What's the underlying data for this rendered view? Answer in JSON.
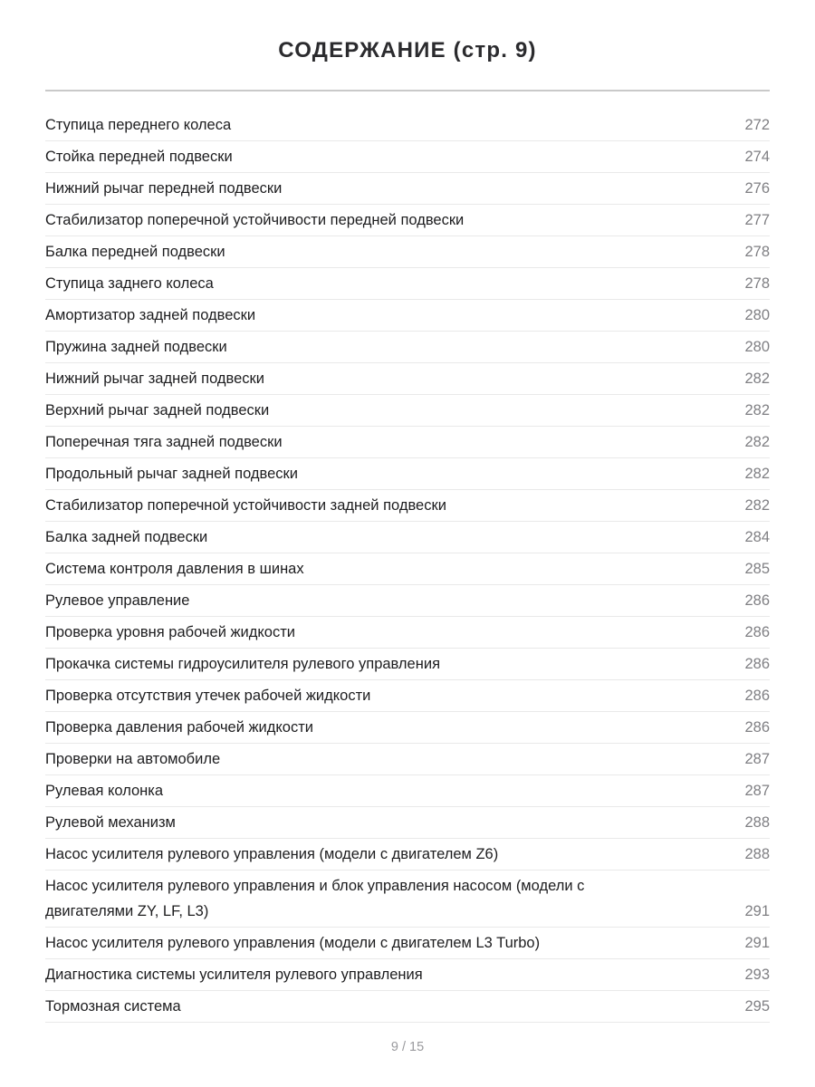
{
  "header": {
    "title": "СОДЕРЖАНИЕ (стр. 9)"
  },
  "toc": {
    "items": [
      {
        "label": "Ступица переднего колеса",
        "page": "272"
      },
      {
        "label": "Стойка передней подвески",
        "page": "274"
      },
      {
        "label": "Нижний рычаг передней подвески",
        "page": "276"
      },
      {
        "label": "Стабилизатор поперечной устойчивости передней подвески",
        "page": "277"
      },
      {
        "label": "Балка передней подвески",
        "page": "278"
      },
      {
        "label": "Ступица заднего колеса",
        "page": "278"
      },
      {
        "label": "Амортизатор задней подвески",
        "page": "280"
      },
      {
        "label": "Пружина задней подвески",
        "page": "280"
      },
      {
        "label": "Нижний рычаг задней подвески",
        "page": "282"
      },
      {
        "label": "Верхний рычаг задней подвески",
        "page": "282"
      },
      {
        "label": "Поперечная тяга задней подвески",
        "page": "282"
      },
      {
        "label": "Продольный рычаг задней подвески",
        "page": "282"
      },
      {
        "label": "Стабилизатор поперечной устойчивости задней подвески",
        "page": "282"
      },
      {
        "label": "Балка задней подвески",
        "page": "284"
      },
      {
        "label": "Система контроля давления в шинах",
        "page": "285"
      },
      {
        "label": "Рулевое управление",
        "page": "286"
      },
      {
        "label": "Проверка уровня рабочей жидкости",
        "page": "286"
      },
      {
        "label": "Прокачка системы гидроусилителя рулевого управления",
        "page": "286"
      },
      {
        "label": "Проверка отсутствия утечек рабочей жидкости",
        "page": "286"
      },
      {
        "label": "Проверка давления рабочей жидкости",
        "page": "286"
      },
      {
        "label": "Проверки на автомобиле",
        "page": "287"
      },
      {
        "label": "Рулевая колонка",
        "page": "287"
      },
      {
        "label": "Рулевой механизм",
        "page": "288"
      },
      {
        "label": "Насос усилителя рулевого управления (модели с двигателем Z6)",
        "page": "288"
      },
      {
        "label": "Насос усилителя рулевого управления и блок управления насосом (модели с двигателями ZY, LF, L3)",
        "page": "291"
      },
      {
        "label": "Насос усилителя рулевого управления (модели с двигателем L3 Turbo)",
        "page": "291"
      },
      {
        "label": "Диагностика системы усилителя рулевого управления",
        "page": "293"
      },
      {
        "label": "Тормозная система",
        "page": "295"
      }
    ]
  },
  "footer": {
    "page_indicator": "9 / 15"
  }
}
